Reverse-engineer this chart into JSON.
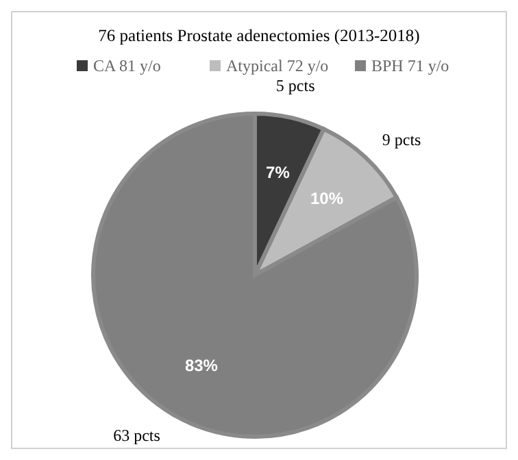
{
  "chart_data": {
    "type": "pie",
    "title": "76 patients Prostate adenectomies (2013-2018)",
    "categories": [
      "CA  81 y/o",
      "Atypical 72 y/o",
      "BPH  71 y/o"
    ],
    "values": [
      7,
      10,
      83
    ],
    "colors": [
      "#3a3a3a",
      "#bdbdbd",
      "#808080"
    ],
    "value_labels": [
      "7%",
      "10%",
      "83%"
    ],
    "annotations": [
      {
        "text": "5 pcts",
        "x": "CA  81 y/o"
      },
      {
        "text": "9 pcts",
        "x": "Atypical 72 y/o"
      },
      {
        "text": "63 pcts",
        "x": "BPH  71 y/o"
      }
    ],
    "legend": "top"
  }
}
